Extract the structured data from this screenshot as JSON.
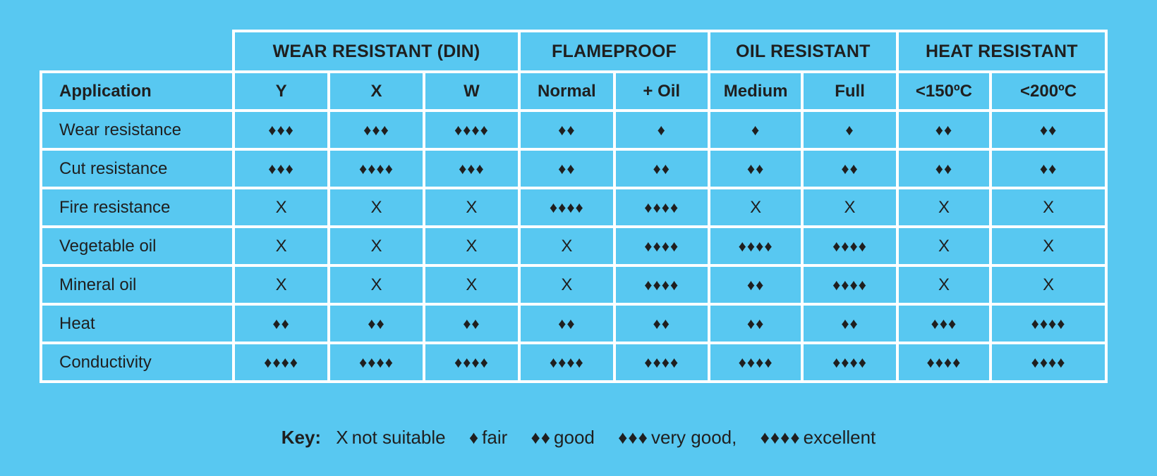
{
  "header": {
    "groups": [
      {
        "label": "WEAR RESISTANT (DIN)",
        "span": 3
      },
      {
        "label": "FLAMEPROOF",
        "span": 2
      },
      {
        "label": "OIL RESISTANT",
        "span": 2
      },
      {
        "label": "HEAT RESISTANT",
        "span": 2
      }
    ],
    "application_label": "Application",
    "columns": [
      "Y",
      "X",
      "W",
      "Normal",
      "+ Oil",
      "Medium",
      "Full",
      "<150ºC",
      "<200ºC"
    ]
  },
  "rows": [
    {
      "application": "Wear resistance",
      "ratings": [
        "♦♦♦",
        "♦♦♦",
        "♦♦♦♦",
        "♦♦",
        "♦",
        "♦",
        "♦",
        "♦♦",
        "♦♦"
      ]
    },
    {
      "application": "Cut resistance",
      "ratings": [
        "♦♦♦",
        "♦♦♦♦",
        "♦♦♦",
        "♦♦",
        "♦♦",
        "♦♦",
        "♦♦",
        "♦♦",
        "♦♦"
      ]
    },
    {
      "application": "Fire resistance",
      "ratings": [
        "X",
        "X",
        "X",
        "♦♦♦♦",
        "♦♦♦♦",
        "X",
        "X",
        "X",
        "X"
      ]
    },
    {
      "application": "Vegetable oil",
      "ratings": [
        "X",
        "X",
        "X",
        "X",
        "♦♦♦♦",
        "♦♦♦♦",
        "♦♦♦♦",
        "X",
        "X"
      ]
    },
    {
      "application": "Mineral oil",
      "ratings": [
        "X",
        "X",
        "X",
        "X",
        "♦♦♦♦",
        "♦♦",
        "♦♦♦♦",
        "X",
        "X"
      ]
    },
    {
      "application": "Heat",
      "ratings": [
        "♦♦",
        "♦♦",
        "♦♦",
        "♦♦",
        "♦♦",
        "♦♦",
        "♦♦",
        "♦♦♦",
        "♦♦♦♦"
      ]
    },
    {
      "application": "Conductivity",
      "ratings": [
        "♦♦♦♦",
        "♦♦♦♦",
        "♦♦♦♦",
        "♦♦♦♦",
        "♦♦♦♦",
        "♦♦♦♦",
        "♦♦♦♦",
        "♦♦♦♦",
        "♦♦♦♦"
      ]
    }
  ],
  "key": {
    "title": "Key:",
    "items": [
      {
        "symbol": "X",
        "label": "not suitable"
      },
      {
        "symbol": "♦",
        "label": "fair"
      },
      {
        "symbol": "♦♦",
        "label": "good"
      },
      {
        "symbol": "♦♦♦",
        "label": "very good,"
      },
      {
        "symbol": "♦♦♦♦",
        "label": "excellent"
      }
    ]
  },
  "colors": {
    "background": "#58c8f1",
    "grid": "#ffffff",
    "text": "#1f1f1f"
  }
}
